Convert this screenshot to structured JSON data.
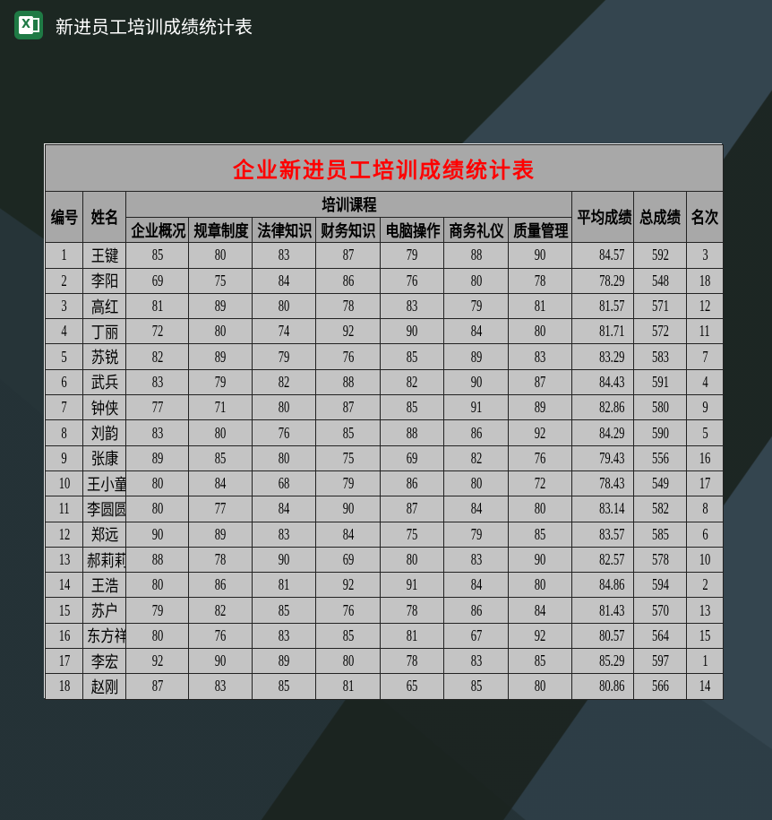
{
  "window": {
    "title": "新进员工培训成绩统计表",
    "app_icon": "excel-icon",
    "accent": "#1f7a45"
  },
  "sheet": {
    "title": "企业新进员工培训成绩统计表",
    "title_color": "#ff0000",
    "headers": {
      "id": "编号",
      "name": "姓名",
      "courses_group": "培训课程",
      "courses": [
        "企业概况",
        "规章制度",
        "法律知识",
        "财务知识",
        "电脑操作",
        "商务礼仪",
        "质量管理"
      ],
      "avg": "平均成绩",
      "total": "总成绩",
      "rank": "名次"
    },
    "rows": [
      {
        "id": "1",
        "name": "王键",
        "scores": [
          "85",
          "80",
          "83",
          "87",
          "79",
          "88",
          "90"
        ],
        "avg": "84.57",
        "total": "592",
        "rank": "3"
      },
      {
        "id": "2",
        "name": "李阳",
        "scores": [
          "69",
          "75",
          "84",
          "86",
          "76",
          "80",
          "78"
        ],
        "avg": "78.29",
        "total": "548",
        "rank": "18"
      },
      {
        "id": "3",
        "name": "高红",
        "scores": [
          "81",
          "89",
          "80",
          "78",
          "83",
          "79",
          "81"
        ],
        "avg": "81.57",
        "total": "571",
        "rank": "12"
      },
      {
        "id": "4",
        "name": "丁丽",
        "scores": [
          "72",
          "80",
          "74",
          "92",
          "90",
          "84",
          "80"
        ],
        "avg": "81.71",
        "total": "572",
        "rank": "11"
      },
      {
        "id": "5",
        "name": "苏锐",
        "scores": [
          "82",
          "89",
          "79",
          "76",
          "85",
          "89",
          "83"
        ],
        "avg": "83.29",
        "total": "583",
        "rank": "7"
      },
      {
        "id": "6",
        "name": "武兵",
        "scores": [
          "83",
          "79",
          "82",
          "88",
          "82",
          "90",
          "87"
        ],
        "avg": "84.43",
        "total": "591",
        "rank": "4"
      },
      {
        "id": "7",
        "name": "钟侠",
        "scores": [
          "77",
          "71",
          "80",
          "87",
          "85",
          "91",
          "89"
        ],
        "avg": "82.86",
        "total": "580",
        "rank": "9"
      },
      {
        "id": "8",
        "name": "刘韵",
        "scores": [
          "83",
          "80",
          "76",
          "85",
          "88",
          "86",
          "92"
        ],
        "avg": "84.29",
        "total": "590",
        "rank": "5"
      },
      {
        "id": "9",
        "name": "张康",
        "scores": [
          "89",
          "85",
          "80",
          "75",
          "69",
          "82",
          "76"
        ],
        "avg": "79.43",
        "total": "556",
        "rank": "16"
      },
      {
        "id": "10",
        "name": "王小童",
        "scores": [
          "80",
          "84",
          "68",
          "79",
          "86",
          "80",
          "72"
        ],
        "avg": "78.43",
        "total": "549",
        "rank": "17"
      },
      {
        "id": "11",
        "name": "李圆圆",
        "scores": [
          "80",
          "77",
          "84",
          "90",
          "87",
          "84",
          "80"
        ],
        "avg": "83.14",
        "total": "582",
        "rank": "8"
      },
      {
        "id": "12",
        "name": "郑远",
        "scores": [
          "90",
          "89",
          "83",
          "84",
          "75",
          "79",
          "85"
        ],
        "avg": "83.57",
        "total": "585",
        "rank": "6"
      },
      {
        "id": "13",
        "name": "郝莉莉",
        "scores": [
          "88",
          "78",
          "90",
          "69",
          "80",
          "83",
          "90"
        ],
        "avg": "82.57",
        "total": "578",
        "rank": "10"
      },
      {
        "id": "14",
        "name": "王浩",
        "scores": [
          "80",
          "86",
          "81",
          "92",
          "91",
          "84",
          "80"
        ],
        "avg": "84.86",
        "total": "594",
        "rank": "2"
      },
      {
        "id": "15",
        "name": "苏户",
        "scores": [
          "79",
          "82",
          "85",
          "76",
          "78",
          "86",
          "84"
        ],
        "avg": "81.43",
        "total": "570",
        "rank": "13"
      },
      {
        "id": "16",
        "name": "东方祥",
        "scores": [
          "80",
          "76",
          "83",
          "85",
          "81",
          "67",
          "92"
        ],
        "avg": "80.57",
        "total": "564",
        "rank": "15"
      },
      {
        "id": "17",
        "name": "李宏",
        "scores": [
          "92",
          "90",
          "89",
          "80",
          "78",
          "83",
          "85"
        ],
        "avg": "85.29",
        "total": "597",
        "rank": "1"
      },
      {
        "id": "18",
        "name": "赵刚",
        "scores": [
          "87",
          "83",
          "85",
          "81",
          "65",
          "85",
          "80"
        ],
        "avg": "80.86",
        "total": "566",
        "rank": "14"
      }
    ]
  }
}
